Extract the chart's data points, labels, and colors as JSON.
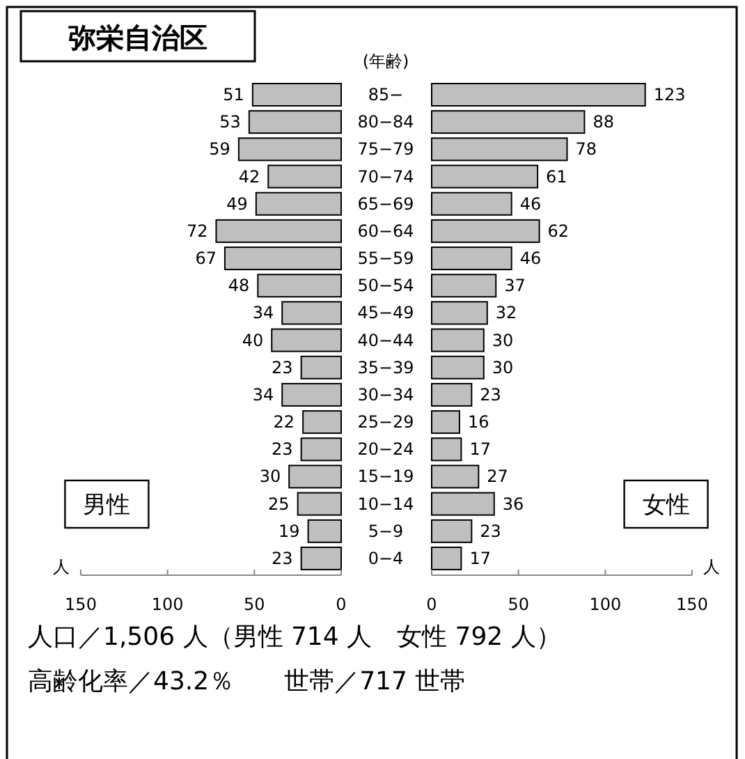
{
  "chart_data": [
    {
      "type": "bar",
      "orientation": "horizontal",
      "title": "弥栄自治区",
      "ylabel": "(年齢)",
      "xlabel": "人",
      "categories": [
        "85−",
        "80−84",
        "75−79",
        "70−74",
        "65−69",
        "60−64",
        "55−59",
        "50−54",
        "45−49",
        "40−44",
        "35−39",
        "30−34",
        "25−29",
        "20−24",
        "15−19",
        "10−14",
        "5−9",
        "0−4"
      ],
      "series": [
        {
          "name": "男性",
          "color": "#bfbfbf",
          "values": [
            51,
            53,
            59,
            42,
            49,
            72,
            67,
            48,
            34,
            40,
            23,
            34,
            22,
            23,
            30,
            25,
            19,
            23
          ]
        }
      ],
      "xlim": [
        150,
        0
      ],
      "xticks": [
        150,
        100,
        50,
        0
      ],
      "data_labels": true
    },
    {
      "type": "bar",
      "orientation": "horizontal",
      "xlabel": "人",
      "series": [
        {
          "name": "女性",
          "color": "#bfbfbf",
          "values": [
            123,
            88,
            78,
            61,
            46,
            62,
            46,
            37,
            32,
            30,
            30,
            23,
            16,
            17,
            27,
            36,
            23,
            17
          ]
        }
      ],
      "xlim": [
        0,
        150
      ],
      "xticks": [
        0,
        50,
        100,
        150
      ],
      "data_labels": true,
      "tick_labels": "x",
      "annotations": [
        "人口／1,506 人（男性 714 人　女性 792 人）",
        "高齢化率／43.2％　　世帯／717 世帯"
      ]
    }
  ]
}
